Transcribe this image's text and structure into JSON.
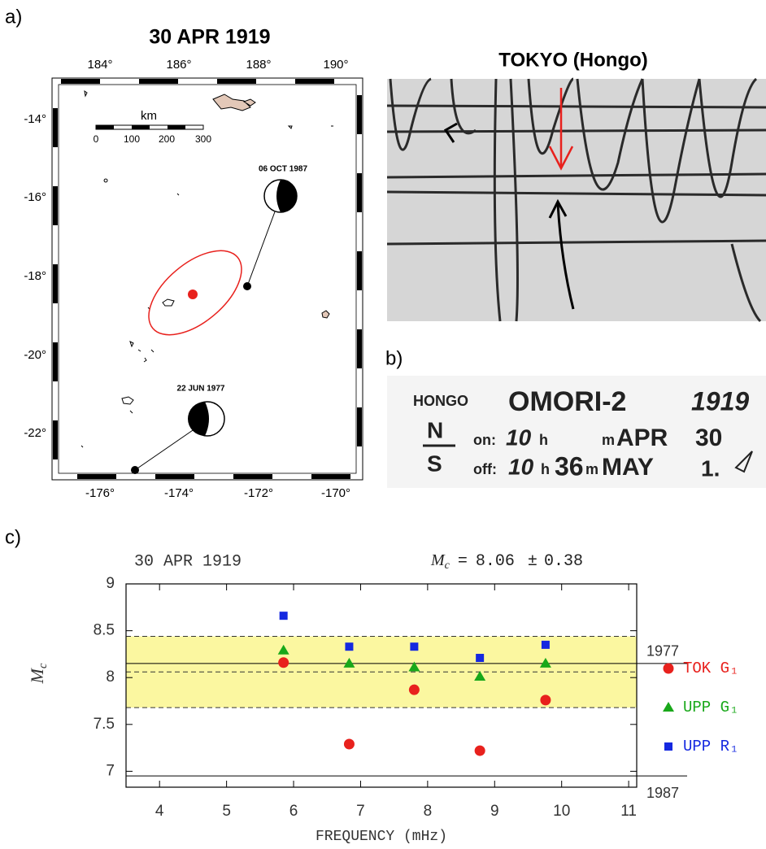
{
  "panel_labels": [
    "a)",
    "b)",
    "c)"
  ],
  "map": {
    "title": "30 APR 1919",
    "top_ticks": [
      "184°",
      "186°",
      "188°",
      "190°"
    ],
    "left_ticks": [
      "-14°",
      "-16°",
      "-18°",
      "-20°",
      "-22°"
    ],
    "bottom_ticks": [
      "-176°",
      "-174°",
      "-172°",
      "-170°"
    ],
    "scale_unit": "km",
    "scale_ticks": [
      "0",
      "100",
      "200",
      "300"
    ],
    "events": [
      "06 OCT 1987",
      "22 JUN 1977"
    ]
  },
  "seismogram": {
    "title": "TOKYO (Hongo)"
  },
  "label_card": {
    "station": "HONGO",
    "instrument": "OMORI-2",
    "year": "1919",
    "component_top": "N",
    "component_bottom": "S",
    "on": "on:",
    "on_hour": "10",
    "h1": "h",
    "m1": "m",
    "on_month": "APR",
    "on_day": "30",
    "off": "off:",
    "off_hour": "10",
    "h2": "h",
    "off_min": "36",
    "m2": "m",
    "off_month": "MAY",
    "off_day": "1."
  },
  "chart_data": {
    "type": "scatter",
    "title": "30 APR 1919",
    "annotation": {
      "symbol": "M",
      "sub": "c",
      "equals": "=",
      "value": 8.06,
      "pm": "±",
      "error": 0.38
    },
    "x_label": "FREQUENCY (mHz)",
    "y_label": {
      "symbol": "M",
      "sub": "c"
    },
    "x": [
      5.85,
      6.83,
      7.8,
      8.78,
      9.76
    ],
    "series": [
      {
        "name": "TOK G₁",
        "color": "#e8211d",
        "marker": "circle",
        "values": [
          8.16,
          7.29,
          7.87,
          7.22,
          7.76
        ]
      },
      {
        "name": "UPP G₁",
        "color": "#19a81a",
        "marker": "triangle",
        "values": [
          8.29,
          8.15,
          8.11,
          8.01,
          8.15
        ]
      },
      {
        "name": "UPP R₁",
        "color": "#1428e0",
        "marker": "square",
        "values": [
          8.66,
          8.33,
          8.33,
          8.21,
          8.35
        ]
      }
    ],
    "reference_lines": [
      {
        "label": "1977",
        "value": 8.15
      },
      {
        "label": "1987",
        "value": 6.95
      }
    ],
    "band_color": "#fbf7a0",
    "xlim": [
      3.5,
      11.12
    ],
    "ylim": [
      6.83,
      9
    ],
    "xticks": [
      4,
      5,
      6,
      7,
      8,
      9,
      10,
      11
    ],
    "yticks": [
      7,
      7.5,
      8,
      8.5,
      9
    ]
  }
}
